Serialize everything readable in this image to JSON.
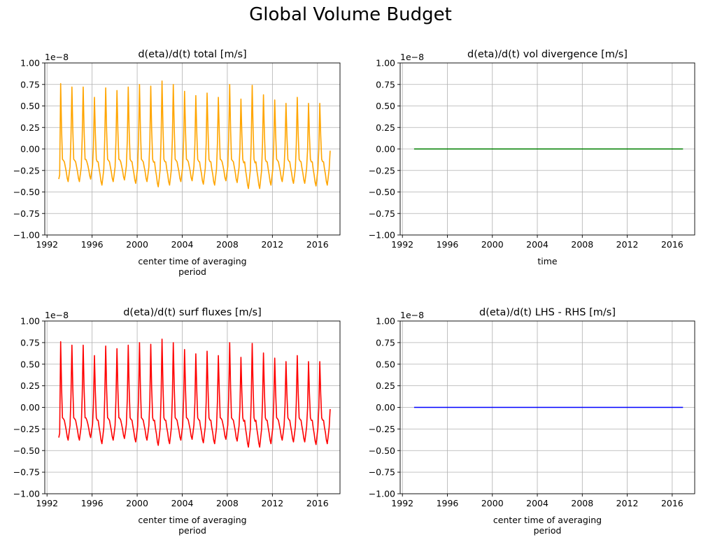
{
  "figure": {
    "suptitle": "Global Volume Budget"
  },
  "chart_data": [
    {
      "type": "line",
      "title": "d(eta)/d(t) total [m/s]",
      "xlabel": "center time of averaging\nperiod",
      "ylabel": "",
      "scale_label": "1e−8",
      "xlim": [
        1991.8,
        2018.0
      ],
      "ylim": [
        -1.0,
        1.0
      ],
      "xticks": [
        1992,
        1996,
        2000,
        2004,
        2008,
        2012,
        2016
      ],
      "yticks": [
        -1.0,
        -0.75,
        -0.5,
        -0.25,
        0.0,
        0.25,
        0.5,
        0.75,
        1.0
      ],
      "ytick_labels": [
        "−1.00",
        "−0.75",
        "−0.50",
        "−0.25",
        "0.00",
        "0.25",
        "0.50",
        "0.75",
        "1.00"
      ],
      "grid": true,
      "color": "#ffa500",
      "series": [
        {
          "x_start": 1993.04,
          "x_step": 0.08333,
          "peaks": [
            0.76,
            0.72,
            0.72,
            0.6,
            0.71,
            0.68,
            0.72,
            0.75,
            0.73,
            0.79,
            0.75,
            0.67,
            0.62,
            0.65,
            0.6,
            0.75,
            0.58,
            0.74,
            0.63,
            0.57,
            0.53,
            0.6,
            0.53,
            0.53
          ],
          "troughs": [
            -0.38,
            -0.38,
            -0.35,
            -0.42,
            -0.38,
            -0.36,
            -0.4,
            -0.38,
            -0.44,
            -0.42,
            -0.38,
            -0.37,
            -0.41,
            -0.42,
            -0.37,
            -0.39,
            -0.46,
            -0.46,
            -0.42,
            -0.38,
            -0.4,
            -0.4,
            -0.43,
            -0.42
          ],
          "start_value": -0.35,
          "end_value": -0.02
        }
      ]
    },
    {
      "type": "line",
      "title": "d(eta)/d(t) vol divergence [m/s]",
      "xlabel": "time",
      "ylabel": "",
      "scale_label": "1e−8",
      "xlim": [
        1991.8,
        2018.0
      ],
      "ylim": [
        -1.0,
        1.0
      ],
      "xticks": [
        1992,
        1996,
        2000,
        2004,
        2008,
        2012,
        2016
      ],
      "yticks": [
        -1.0,
        -0.75,
        -0.5,
        -0.25,
        0.0,
        0.25,
        0.5,
        0.75,
        1.0
      ],
      "ytick_labels": [
        "−1.00",
        "−0.75",
        "−0.50",
        "−0.25",
        "0.00",
        "0.25",
        "0.50",
        "0.75",
        "1.00"
      ],
      "grid": true,
      "color": "#008000",
      "series": [
        {
          "x": [
            1993.04,
            2016.96
          ],
          "y": [
            0.0,
            0.0
          ]
        }
      ]
    },
    {
      "type": "line",
      "title": "d(eta)/d(t) surf fluxes [m/s]",
      "xlabel": "center time of averaging\nperiod",
      "ylabel": "",
      "scale_label": "1e−8",
      "xlim": [
        1991.8,
        2018.0
      ],
      "ylim": [
        -1.0,
        1.0
      ],
      "xticks": [
        1992,
        1996,
        2000,
        2004,
        2008,
        2012,
        2016
      ],
      "yticks": [
        -1.0,
        -0.75,
        -0.5,
        -0.25,
        0.0,
        0.25,
        0.5,
        0.75,
        1.0
      ],
      "ytick_labels": [
        "−1.00",
        "−0.75",
        "−0.50",
        "−0.25",
        "0.00",
        "0.25",
        "0.50",
        "0.75",
        "1.00"
      ],
      "grid": true,
      "color": "#ff0000",
      "series": [
        {
          "x_start": 1993.04,
          "x_step": 0.08333,
          "peaks": [
            0.76,
            0.72,
            0.72,
            0.6,
            0.71,
            0.68,
            0.72,
            0.75,
            0.73,
            0.79,
            0.75,
            0.67,
            0.62,
            0.65,
            0.6,
            0.75,
            0.58,
            0.74,
            0.63,
            0.57,
            0.53,
            0.6,
            0.53,
            0.53
          ],
          "troughs": [
            -0.38,
            -0.38,
            -0.35,
            -0.42,
            -0.38,
            -0.36,
            -0.4,
            -0.38,
            -0.44,
            -0.42,
            -0.38,
            -0.37,
            -0.41,
            -0.42,
            -0.37,
            -0.39,
            -0.46,
            -0.46,
            -0.42,
            -0.38,
            -0.4,
            -0.4,
            -0.43,
            -0.42
          ],
          "start_value": -0.35,
          "end_value": -0.02
        }
      ]
    },
    {
      "type": "line",
      "title": "d(eta)/d(t) LHS - RHS [m/s]",
      "xlabel": "center time of averaging\nperiod",
      "ylabel": "",
      "scale_label": "1e−8",
      "xlim": [
        1991.8,
        2018.0
      ],
      "ylim": [
        -1.0,
        1.0
      ],
      "xticks": [
        1992,
        1996,
        2000,
        2004,
        2008,
        2012,
        2016
      ],
      "yticks": [
        -1.0,
        -0.75,
        -0.5,
        -0.25,
        0.0,
        0.25,
        0.5,
        0.75,
        1.0
      ],
      "ytick_labels": [
        "−1.00",
        "−0.75",
        "−0.50",
        "−0.25",
        "0.00",
        "0.25",
        "0.50",
        "0.75",
        "1.00"
      ],
      "grid": true,
      "color": "#0000ff",
      "series": [
        {
          "x": [
            1993.04,
            2016.96
          ],
          "y": [
            0.0,
            0.0
          ]
        }
      ]
    }
  ]
}
